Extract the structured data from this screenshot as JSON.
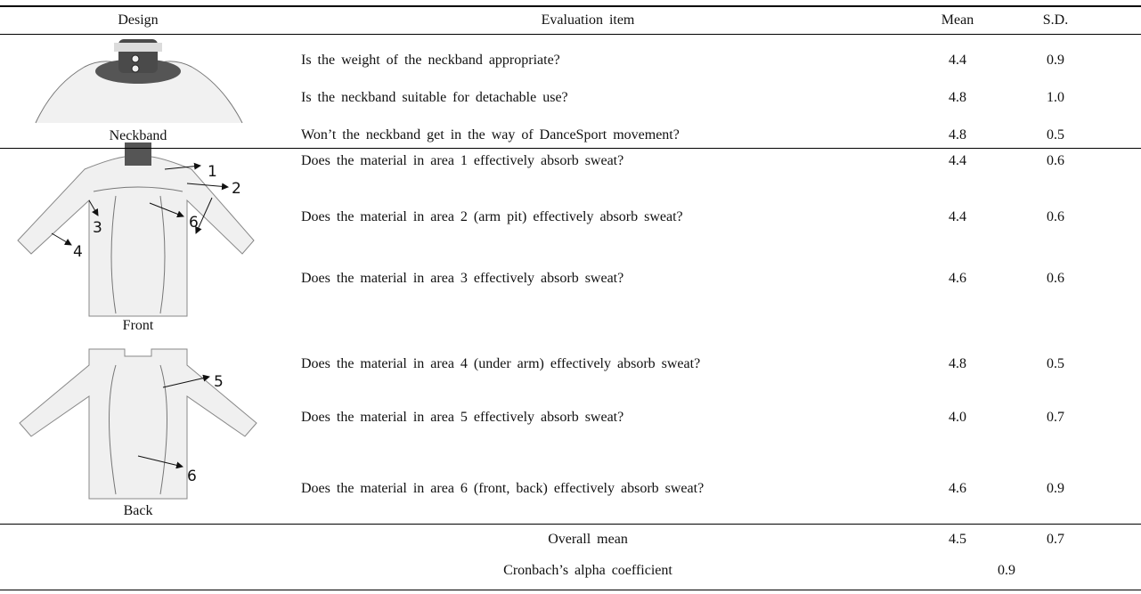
{
  "header": [
    "Design",
    "Evaluation item",
    "Mean",
    "S.D."
  ],
  "groups": [
    {
      "design": "Neckband",
      "rows": [
        {
          "item": "Is the weight of the neckband appropriate?",
          "mean": "4.4",
          "sd": "0.9"
        },
        {
          "item": "Is the neckband suitable for detachable use?",
          "mean": "4.8",
          "sd": "1.0"
        },
        {
          "item": "Won’t the neckband get in the way of DanceSport movement?",
          "mean": "4.8",
          "sd": "0.5"
        }
      ]
    },
    {
      "front": "Front",
      "back": "Back",
      "front_labels": [
        "1",
        "2",
        "3",
        "4",
        "6"
      ],
      "back_labels": [
        "5",
        "6"
      ],
      "rows": [
        {
          "item": "Does the material in area 1 effectively absorb sweat?",
          "mean": "4.4",
          "sd": "0.6"
        },
        {
          "item": "Does the material in area 2 (arm pit) effectively absorb sweat?",
          "mean": "4.4",
          "sd": "0.6"
        },
        {
          "item": "Does the material in area 3 effectively absorb sweat?",
          "mean": "4.6",
          "sd": "0.6"
        },
        {
          "item": "Does the material in area 4 (under arm) effectively absorb sweat?",
          "mean": "4.8",
          "sd": "0.5"
        },
        {
          "item": "Does the material in area 5 effectively absorb sweat?",
          "mean": "4.0",
          "sd": "0.7"
        },
        {
          "item": "Does the material in area 6 (front, back) effectively absorb sweat?",
          "mean": "4.6",
          "sd": "0.9"
        }
      ]
    }
  ],
  "footer": {
    "overall_label": "Overall mean",
    "overall_mean": "4.5",
    "overall_sd": "0.7",
    "alpha_label": "Cronbach’s alpha coefficient",
    "alpha": "0.9"
  }
}
